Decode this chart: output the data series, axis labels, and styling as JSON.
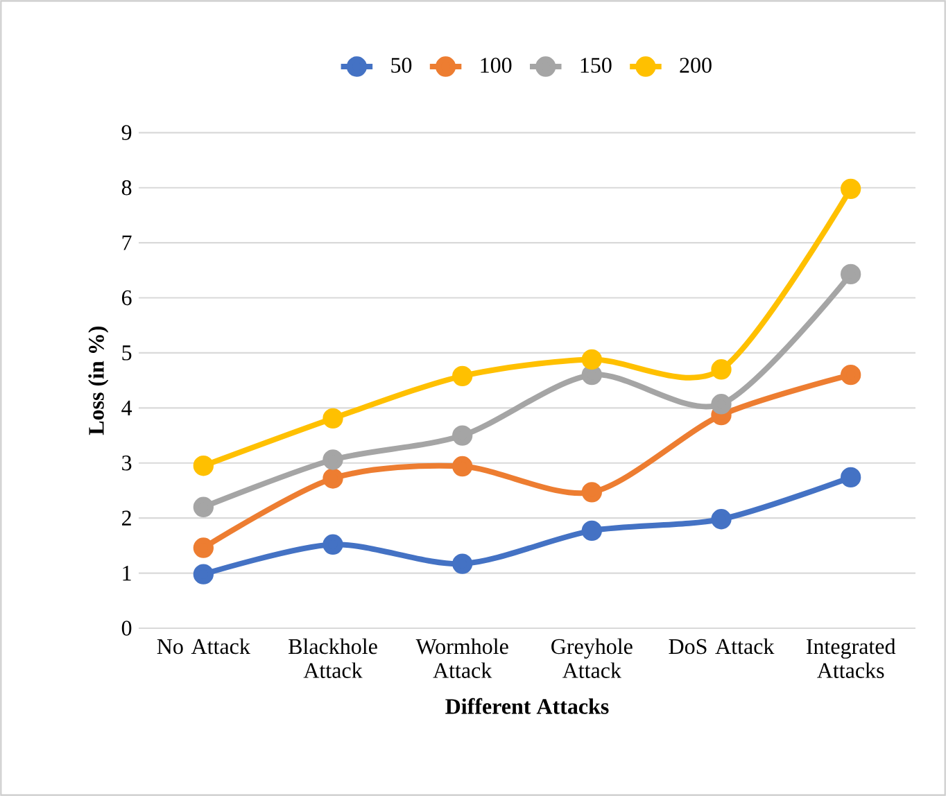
{
  "chart_data": {
    "type": "line",
    "xlabel": "Different Attacks",
    "ylabel": "Loss (in %)",
    "categories": [
      "No Attack",
      "Blackhole Attack",
      "Wormhole Attack",
      "Greyhole Attack",
      "DoS Attack",
      "Integrated Attacks"
    ],
    "series": [
      {
        "name": "50",
        "color": "#4472c4",
        "values": [
          0.98,
          1.52,
          1.17,
          1.77,
          1.98,
          2.74
        ]
      },
      {
        "name": "100",
        "color": "#ed7d31",
        "values": [
          1.46,
          2.72,
          2.94,
          2.47,
          3.87,
          4.6
        ]
      },
      {
        "name": "150",
        "color": "#a5a5a5",
        "values": [
          2.2,
          3.06,
          3.5,
          4.6,
          4.07,
          6.43
        ]
      },
      {
        "name": "200",
        "color": "#ffc000",
        "values": [
          2.95,
          3.81,
          4.58,
          4.88,
          4.7,
          7.98
        ]
      }
    ],
    "ylim": [
      0,
      9
    ],
    "yticks": [
      0,
      1,
      2,
      3,
      4,
      5,
      6,
      7,
      8,
      9
    ],
    "grid": "y",
    "legend": "top",
    "marker": "circle",
    "line_style": "solid"
  }
}
